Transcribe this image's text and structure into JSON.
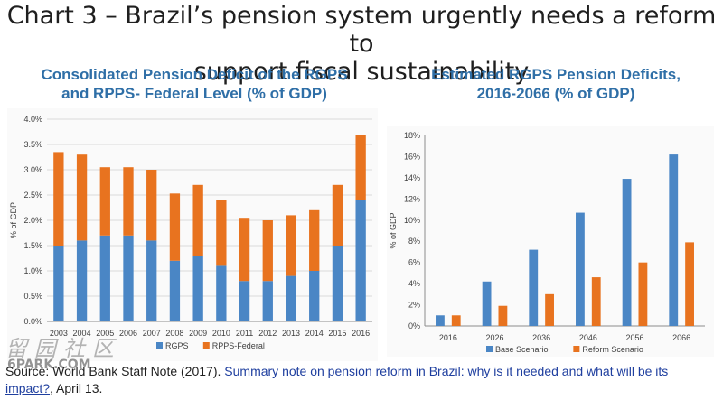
{
  "title_line1": "Chart 3 – Brazil’s pension system urgently needs a reform to",
  "title_line2": "support fiscal sustainability",
  "watermark": "留园社区 6PARK.COM",
  "source": {
    "prefix": "Source: World Bank Staff Note (2017). ",
    "link": "Summary note on pension reform in Brazil: why is it needed and what will be its impact?",
    "suffix": ", April 13."
  },
  "chart_data": [
    {
      "type": "bar",
      "stacked": true,
      "title_line1": "Consolidated Pension Deficit of the RGPS",
      "title_line2": "and RPPS- Federal Level (% of GDP)",
      "ylabel": "% of GDP",
      "xlabel": "",
      "ylim": [
        0,
        4.0
      ],
      "yticks": [
        "0.0%",
        "0.5%",
        "1.0%",
        "1.5%",
        "2.0%",
        "2.5%",
        "3.0%",
        "3.5%",
        "4.0%"
      ],
      "categories": [
        "2003",
        "2004",
        "2005",
        "2006",
        "2007",
        "2008",
        "2009",
        "2010",
        "2011",
        "2012",
        "2013",
        "2014",
        "2015",
        "2016"
      ],
      "series": [
        {
          "name": "RGPS",
          "color": "#4a86c5",
          "values": [
            1.5,
            1.6,
            1.7,
            1.7,
            1.6,
            1.2,
            1.3,
            1.1,
            0.8,
            0.8,
            0.9,
            1.0,
            1.5,
            2.4
          ]
        },
        {
          "name": "RPPS-Federal",
          "color": "#e8731f",
          "values": [
            1.85,
            1.7,
            1.35,
            1.35,
            1.4,
            1.33,
            1.4,
            1.3,
            1.25,
            1.2,
            1.2,
            1.2,
            1.2,
            1.28
          ]
        }
      ],
      "legend_position": "bottom",
      "grid": true
    },
    {
      "type": "bar",
      "stacked": false,
      "title_line1": "Estimated RGPS Pension Deficits,",
      "title_line2": "2016-2066 (% of GDP)",
      "ylabel": "% of GDP",
      "xlabel": "",
      "ylim": [
        0,
        18
      ],
      "yticks": [
        "0%",
        "2%",
        "4%",
        "6%",
        "8%",
        "10%",
        "12%",
        "14%",
        "16%",
        "18%"
      ],
      "categories": [
        "2016",
        "2026",
        "2036",
        "2046",
        "2056",
        "2066"
      ],
      "series": [
        {
          "name": "Base Scenario",
          "color": "#4a86c5",
          "values": [
            1.0,
            4.2,
            7.2,
            10.7,
            13.9,
            16.2
          ]
        },
        {
          "name": "Reform Scenario",
          "color": "#e8731f",
          "values": [
            1.0,
            1.9,
            3.0,
            4.6,
            6.0,
            7.9
          ]
        }
      ],
      "legend_position": "bottom",
      "grid": false
    }
  ]
}
